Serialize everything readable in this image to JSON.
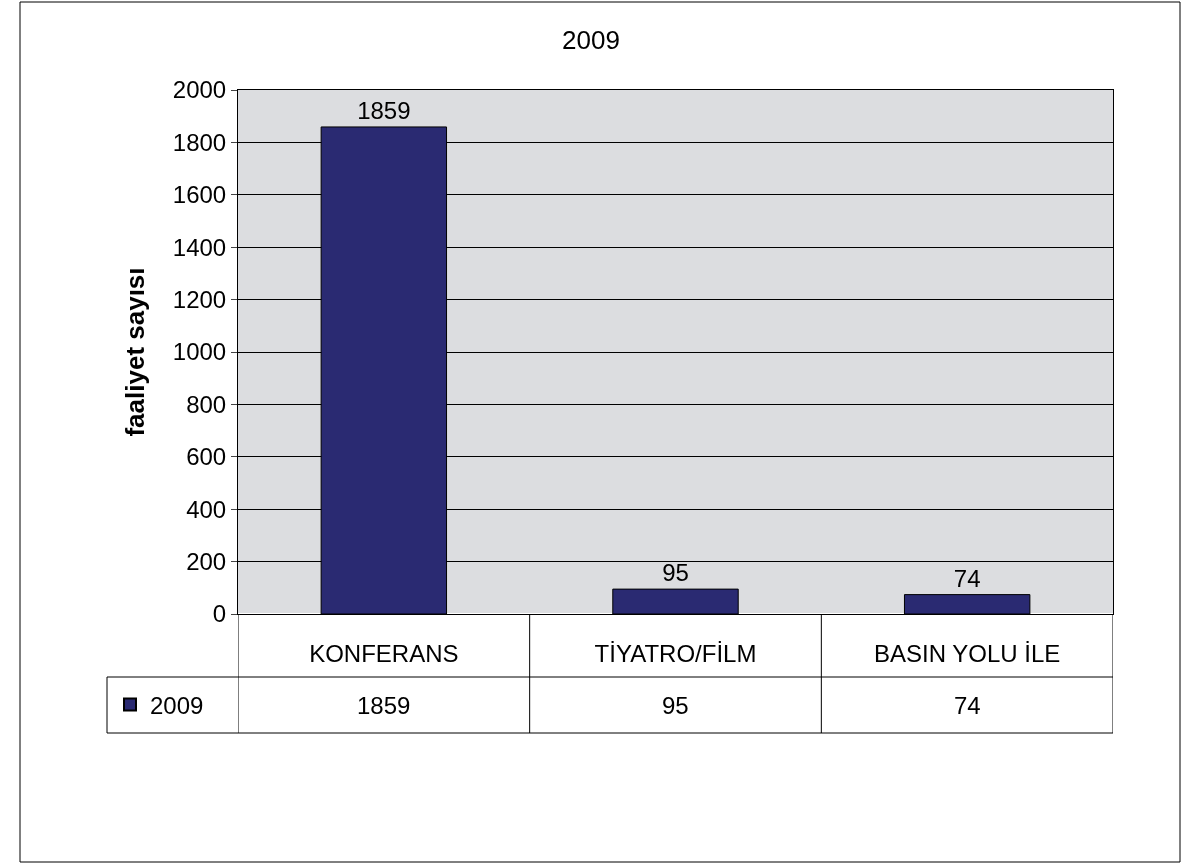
{
  "chart_data": {
    "type": "bar",
    "title": "2009",
    "ylabel": "faaliyet sayısı",
    "categories": [
      "KONFERANS",
      "TİYATRO/FİLM",
      "BASIN YOLU İLE"
    ],
    "series": [
      {
        "name": "2009",
        "color": "#2a2a72",
        "values": [
          1859,
          95,
          74
        ],
        "value_labels": [
          "1859",
          "95",
          "74"
        ]
      }
    ],
    "ylim": [
      0,
      2000
    ],
    "yticks": [
      0,
      200,
      400,
      600,
      800,
      1000,
      1200,
      1400,
      1600,
      1800,
      2000
    ],
    "grid": "y",
    "annotations": [
      "1859",
      "95",
      "74"
    ],
    "legend": "bottom left"
  }
}
